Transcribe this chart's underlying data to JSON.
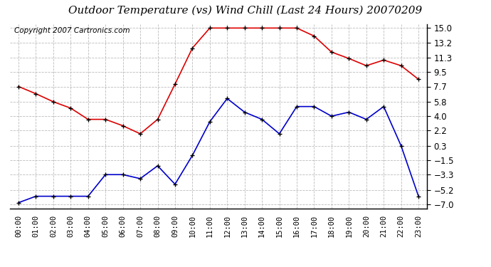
{
  "title": "Outdoor Temperature (vs) Wind Chill (Last 24 Hours) 20070209",
  "copyright": "Copyright 2007 Cartronics.com",
  "x_labels": [
    "00:00",
    "01:00",
    "02:00",
    "03:00",
    "04:00",
    "05:00",
    "06:00",
    "07:00",
    "08:00",
    "09:00",
    "10:00",
    "11:00",
    "12:00",
    "13:00",
    "14:00",
    "15:00",
    "16:00",
    "17:00",
    "18:00",
    "19:00",
    "20:00",
    "21:00",
    "22:00",
    "23:00"
  ],
  "outdoor_temp": [
    7.7,
    6.8,
    5.8,
    5.0,
    3.6,
    3.6,
    2.8,
    1.8,
    3.6,
    8.0,
    12.5,
    15.0,
    15.0,
    15.0,
    15.0,
    15.0,
    15.0,
    14.0,
    12.0,
    11.2,
    10.3,
    11.0,
    10.3,
    8.6
  ],
  "wind_chill": [
    -6.8,
    -6.0,
    -6.0,
    -6.0,
    -6.0,
    -3.3,
    -3.3,
    -3.8,
    -2.2,
    -4.5,
    -0.9,
    3.3,
    6.2,
    4.5,
    3.6,
    1.8,
    5.2,
    5.2,
    4.0,
    4.5,
    3.6,
    5.2,
    0.3,
    -6.0
  ],
  "yticks": [
    15.0,
    13.2,
    11.3,
    9.5,
    7.7,
    5.8,
    4.0,
    2.2,
    0.3,
    -1.5,
    -3.3,
    -5.2,
    -7.0
  ],
  "ylim": [
    -7.5,
    15.5
  ],
  "bg_color": "#ffffff",
  "plot_bg": "#ffffff",
  "grid_color": "#aaaaaa",
  "temp_color": "#dd0000",
  "chill_color": "#0000cc",
  "title_fontsize": 11,
  "copyright_fontsize": 7.5
}
